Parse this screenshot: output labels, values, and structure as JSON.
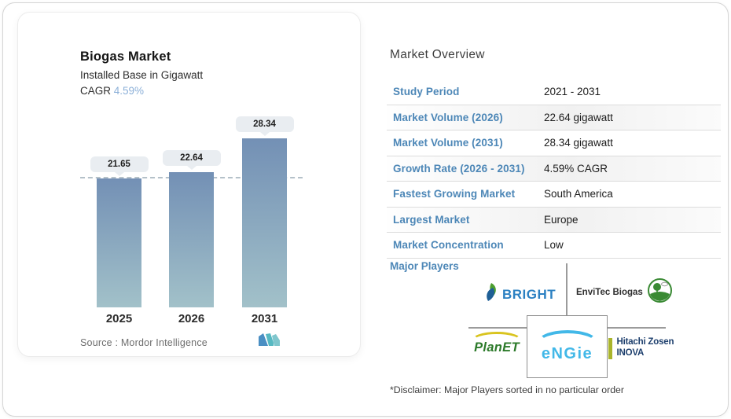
{
  "left_card": {
    "title": "Biogas Market",
    "subtitle": "Installed Base in Gigawatt",
    "cagr_label": "CAGR",
    "cagr_value": "4.59%",
    "source_text": "Source :  Mordor Intelligence"
  },
  "chart_data": {
    "type": "bar",
    "title": "Biogas Market",
    "subtitle": "Installed Base in Gigawatt",
    "cagr": "4.59%",
    "categories": [
      "2025",
      "2026",
      "2031"
    ],
    "values": [
      21.65,
      22.64,
      28.34
    ],
    "value_labels": [
      "21.65",
      "22.64",
      "28.34"
    ],
    "unit": "gigawatt",
    "baseline_value": 21.65,
    "ylim": [
      0,
      28.34
    ],
    "grid": false,
    "legend": "none"
  },
  "overview": {
    "title": "Market Overview",
    "rows": [
      {
        "label": "Study Period",
        "value": "2021 - 2031"
      },
      {
        "label": "Market Volume (2026)",
        "value": "22.64 gigawatt"
      },
      {
        "label": "Market Volume (2031)",
        "value": "28.34 gigawatt"
      },
      {
        "label": "Growth Rate (2026 - 2031)",
        "value": "4.59% CAGR"
      },
      {
        "label": "Fastest Growing Market",
        "value": "South America"
      },
      {
        "label": "Largest Market",
        "value": "Europe"
      },
      {
        "label": "Market Concentration",
        "value": "Low"
      }
    ],
    "major_players_label": "Major Players",
    "players": {
      "bright": "BRIGHT",
      "envitec": "EnviTec Biogas",
      "planet": "PlanET",
      "engie": "eNGie",
      "hitachi_line1": "Hitachi Zosen",
      "hitachi_line2": "INOVA"
    },
    "disclaimer": "*Disclaimer: Major Players sorted in no particular order"
  },
  "colors": {
    "accent_label_blue": "#4d87b7",
    "cagr_value_blue": "#8cb0d8",
    "bar_gradient_top": "#7390b5",
    "bar_gradient_bottom": "#a2c1c9",
    "pill_background": "#e9edf1",
    "bright_blue": "#2b80c2",
    "envitec_green": "#3a8a34",
    "planet_green": "#2c7a2a",
    "planet_arc_yellow": "#d9c41f",
    "engie_blue": "#42b8e8",
    "hitachi_navy": "#1d3f6d",
    "hitachi_bar_olive": "#a9b42c",
    "mordor_blue": "#4a8fc3",
    "mordor_teal": "#57b9c2"
  }
}
